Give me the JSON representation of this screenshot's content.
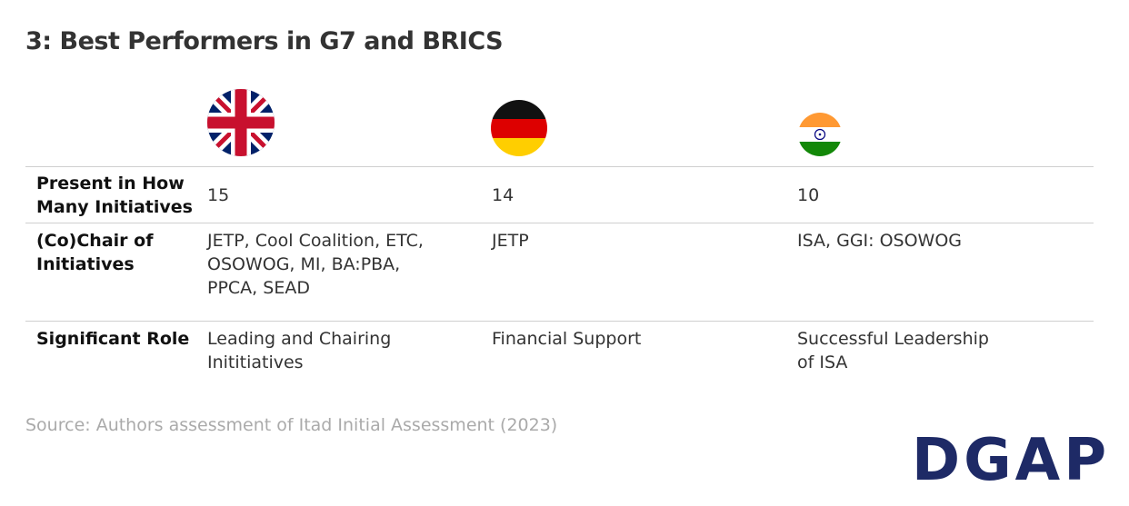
{
  "title": "3: Best Performers in G7 and BRICS",
  "table": {
    "rows": [
      {
        "label": [
          "Present in How",
          "Many Initiatives"
        ],
        "cells": [
          [
            "15"
          ],
          [
            "14"
          ],
          [
            "10"
          ]
        ]
      },
      {
        "label": [
          "(Co)Chair of",
          "Initiatives"
        ],
        "cells": [
          [
            "JETP, Cool Coalition, ETC,",
            "OSOWOG, MI, BA:PBA,",
            "PPCA, SEAD"
          ],
          [
            "JETP"
          ],
          [
            "ISA, GGI: OSOWOG"
          ]
        ]
      },
      {
        "label": [
          "Significant Role"
        ],
        "cells": [
          [
            "Leading and Chairing",
            "Inititiatives"
          ],
          [
            "Financial Support"
          ],
          [
            "Successful Leadership",
            "of ISA"
          ]
        ]
      }
    ]
  },
  "source": "Source: Authors assessment of Itad Initial Assessment (2023)",
  "logo": "DGAP"
}
